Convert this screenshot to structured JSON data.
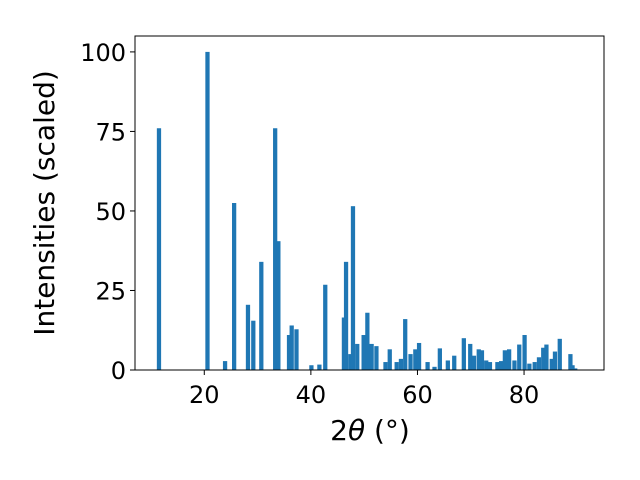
{
  "chart_data": {
    "type": "bar",
    "xlabel_main": "2",
    "xlabel_theta": "θ",
    "xlabel_unit": " (°)",
    "ylabel": "Intensities (scaled)",
    "xlim": [
      7,
      95
    ],
    "ylim": [
      0,
      105
    ],
    "grid": false,
    "bar_color": "#1f77b4",
    "xticks": [
      20,
      40,
      60,
      80
    ],
    "yticks": [
      0,
      25,
      50,
      75,
      100
    ],
    "x": [
      11.5,
      20.6,
      23.9,
      25.6,
      28.2,
      29.2,
      30.7,
      33.3,
      33.9,
      35.9,
      36.4,
      37.3,
      40.1,
      41.6,
      42.7,
      46.2,
      46.6,
      47.4,
      47.9,
      48.7,
      49.9,
      50.6,
      51.4,
      52.3,
      54.0,
      54.8,
      56.1,
      56.9,
      57.7,
      58.7,
      59.6,
      60.3,
      61.9,
      63.2,
      64.2,
      65.7,
      66.9,
      68.7,
      69.9,
      70.6,
      71.5,
      72.1,
      72.9,
      73.6,
      75.0,
      75.7,
      76.4,
      77.2,
      78.2,
      79.1,
      80.1,
      81.0,
      82.0,
      82.8,
      83.6,
      84.2,
      85.2,
      85.8,
      86.7,
      88.7,
      89.1,
      89.6
    ],
    "values": [
      76,
      100,
      2.8,
      52.5,
      20.5,
      15.5,
      34,
      76,
      40.5,
      11,
      14,
      12.8,
      1.5,
      1.7,
      26.8,
      16.5,
      34,
      5,
      51.5,
      8.2,
      11,
      18,
      8.2,
      7.5,
      2.5,
      6.5,
      2.5,
      3.5,
      16,
      5,
      6.5,
      8.5,
      2.5,
      1,
      6.8,
      3,
      4.5,
      10,
      8.2,
      4.5,
      6.5,
      6.2,
      3,
      2.5,
      2.5,
      2.8,
      6.2,
      6.5,
      3,
      8,
      11,
      2,
      2.5,
      4,
      7,
      8,
      3.5,
      5.8,
      9.8,
      5,
      1.5,
      0.5
    ]
  }
}
